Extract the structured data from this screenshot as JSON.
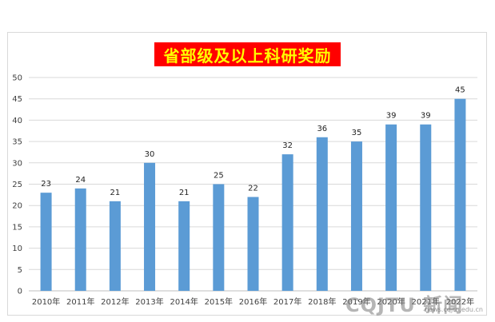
{
  "chart_data": {
    "type": "bar",
    "title": "省部级及以上科研奖励",
    "categories": [
      "2010年",
      "2011年",
      "2012年",
      "2013年",
      "2014年",
      "2015年",
      "2016年",
      "2017年",
      "2018年",
      "2019年",
      "2020年",
      "2021年",
      "2022年"
    ],
    "values": [
      23,
      24,
      21,
      30,
      21,
      25,
      22,
      32,
      36,
      35,
      39,
      39,
      45
    ],
    "ylim": [
      0,
      50
    ],
    "yticks": [
      0,
      5,
      10,
      15,
      20,
      25,
      30,
      35,
      40,
      45,
      50
    ],
    "xlabel": "",
    "ylabel": "",
    "grid": true,
    "legend": "none",
    "bar_color": "#5b9bd5",
    "title_bg_color": "#ff0000",
    "title_text_color": "#ffff00"
  },
  "watermark": {
    "text": "CQJTU 新闻",
    "sub": "news.cqjtu.edu.cn"
  }
}
